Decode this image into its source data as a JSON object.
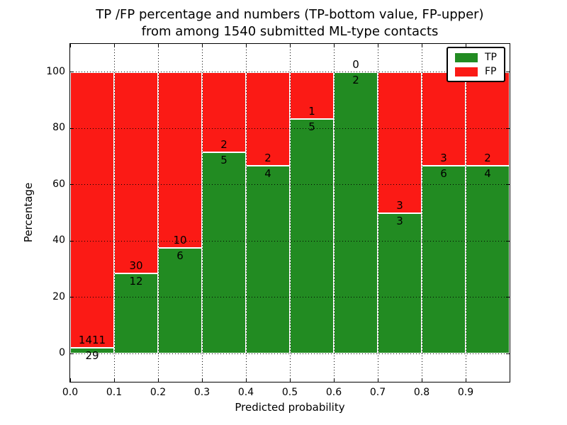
{
  "figure": {
    "title_line1": "TP /FP percentage and numbers (TP-bottom value, FP-upper)",
    "title_line2": "from among 1540 submitted ML-type contacts",
    "xlabel": "Predicted probability",
    "ylabel": "Percentage"
  },
  "legend": {
    "items": [
      {
        "label": "TP",
        "color": "#228b22"
      },
      {
        "label": "FP",
        "color": "#fb1a15"
      }
    ]
  },
  "chart_data": {
    "type": "bar",
    "stacked": true,
    "normalized_to_percent": true,
    "title": "TP /FP percentage and numbers (TP-bottom value, FP-upper)\nfrom among 1540 submitted ML-type contacts",
    "xlabel": "Predicted probability",
    "ylabel": "Percentage",
    "xlim": [
      0.0,
      1.0
    ],
    "ylim": [
      -10,
      110
    ],
    "x_tick_labels": [
      "0.0",
      "0.1",
      "0.2",
      "0.3",
      "0.4",
      "0.5",
      "0.6",
      "0.7",
      "0.8",
      "0.9"
    ],
    "y_tick_values": [
      0,
      20,
      40,
      60,
      80,
      100
    ],
    "bin_width": 0.1,
    "bin_starts": [
      0.0,
      0.1,
      0.2,
      0.3,
      0.4,
      0.5,
      0.6,
      0.7,
      0.8,
      0.9
    ],
    "series": [
      {
        "name": "TP",
        "color": "#228b22",
        "counts": [
          29,
          12,
          6,
          5,
          4,
          5,
          2,
          3,
          6,
          4
        ]
      },
      {
        "name": "FP",
        "color": "#fb1a15",
        "counts": [
          1411,
          30,
          10,
          2,
          2,
          1,
          0,
          3,
          3,
          2
        ]
      }
    ],
    "tp_percent_by_bin": [
      2.01,
      28.57,
      37.5,
      71.43,
      66.67,
      83.33,
      100.0,
      50.0,
      66.67,
      66.67
    ],
    "total_contacts": 1540,
    "grid": {
      "style": "dotted",
      "color": "#000000",
      "on_top": true
    },
    "legend_position": "upper right"
  }
}
